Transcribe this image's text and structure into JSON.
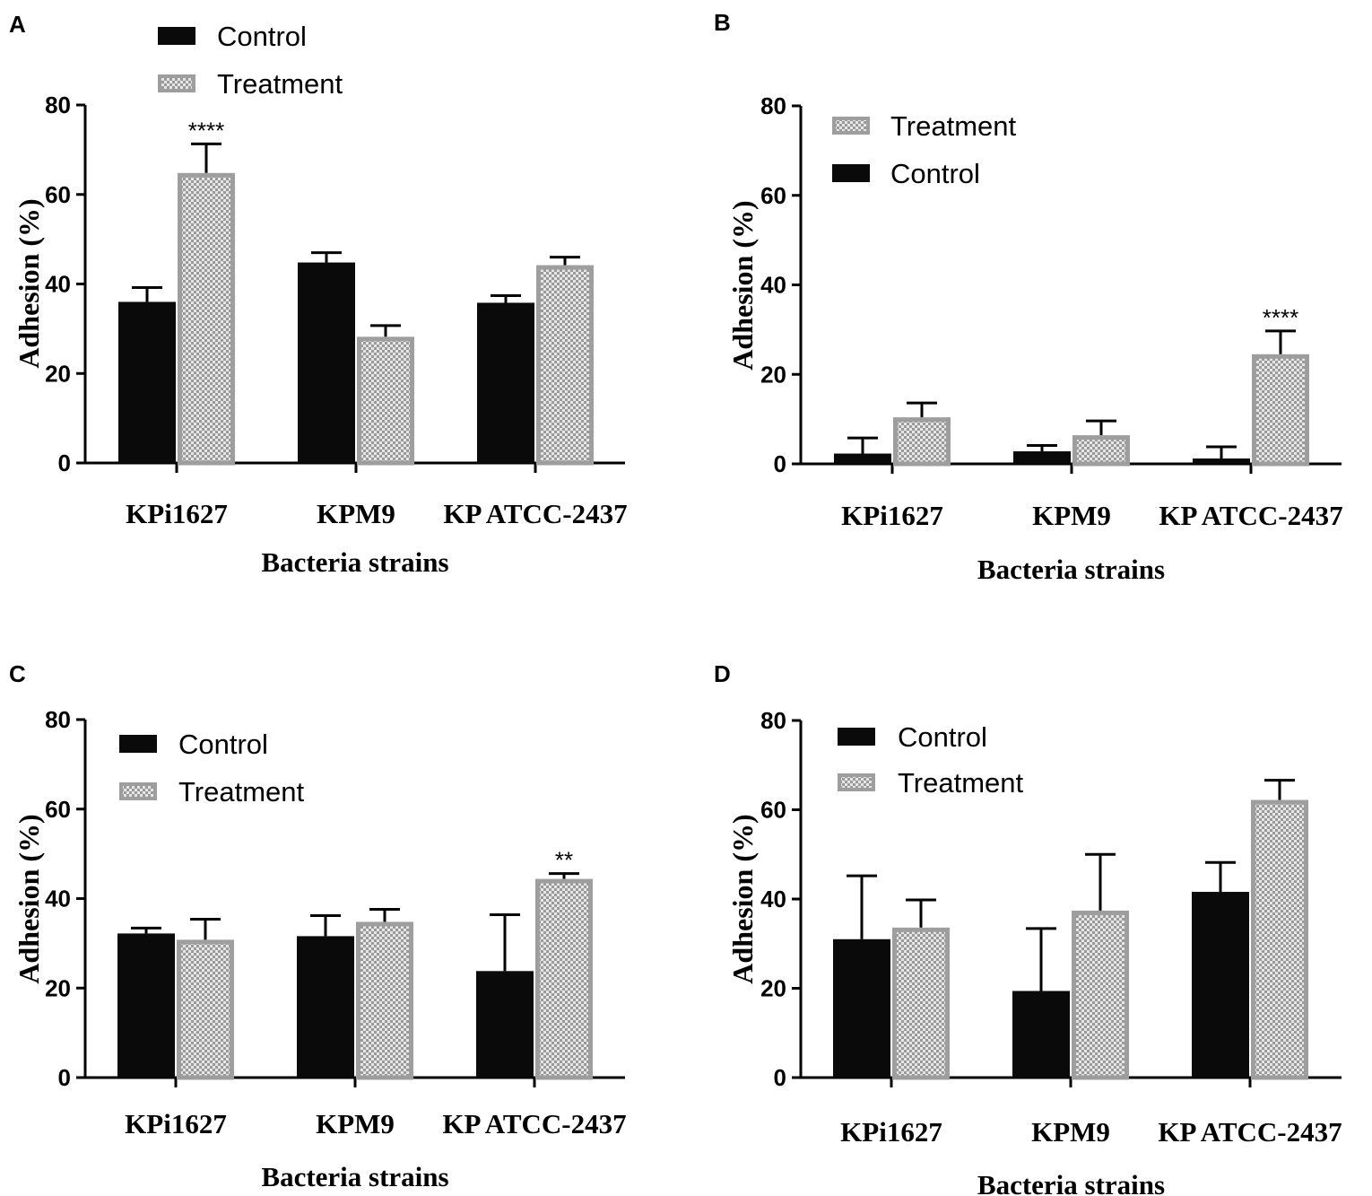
{
  "colors": {
    "control": "#0a0a0a",
    "treatment_fill": "#cfcfcf",
    "treatment_border": "#9e9e9e",
    "axis": "#000000"
  },
  "chart_data": [
    {
      "panel": "A",
      "type": "bar",
      "categories": [
        "KPi1627",
        "KPM9",
        "KP ATCC-2437"
      ],
      "series": [
        {
          "name": "Control",
          "values": [
            36,
            44.8,
            35.8
          ],
          "errors": [
            3.2,
            2.2,
            1.6
          ]
        },
        {
          "name": "Treatment",
          "values": [
            64.8,
            28.2,
            44.2
          ],
          "errors": [
            6.5,
            2.5,
            1.8
          ]
        }
      ],
      "legend_order": [
        "Control",
        "Treatment"
      ],
      "legend_position": "top-left outside",
      "annotations": [
        {
          "category": 0,
          "series": "Treatment",
          "text": "****"
        }
      ],
      "xlabel": "Bacteria strains",
      "ylabel": "Adhesion (%)",
      "ylim": [
        0,
        80
      ],
      "yticks": [
        0,
        20,
        40,
        60,
        80
      ]
    },
    {
      "panel": "B",
      "type": "bar",
      "categories": [
        "KPi1627",
        "KPM9",
        "KP ATCC-2437"
      ],
      "series": [
        {
          "name": "Control",
          "values": [
            2.3,
            2.8,
            1.2
          ],
          "errors": [
            3.5,
            1.3,
            2.6
          ]
        },
        {
          "name": "Treatment",
          "values": [
            10.4,
            6.4,
            24.5
          ],
          "errors": [
            3.2,
            3.2,
            5.2
          ]
        }
      ],
      "legend_order": [
        "Treatment",
        "Control"
      ],
      "legend_position": "top-left",
      "annotations": [
        {
          "category": 2,
          "series": "Treatment",
          "text": "****"
        }
      ],
      "xlabel": "Bacteria strains",
      "ylabel": "Adhesion (%)",
      "ylim": [
        0,
        80
      ],
      "yticks": [
        0,
        20,
        40,
        60,
        80
      ]
    },
    {
      "panel": "C",
      "type": "bar",
      "categories": [
        "KPi1627",
        "KPM9",
        "KP ATCC-2437"
      ],
      "series": [
        {
          "name": "Control",
          "values": [
            32.2,
            31.6,
            23.8
          ],
          "errors": [
            1.2,
            4.6,
            12.6
          ]
        },
        {
          "name": "Treatment",
          "values": [
            30.8,
            34.8,
            44.4
          ],
          "errors": [
            4.6,
            2.8,
            1.2
          ]
        }
      ],
      "legend_order": [
        "Control",
        "Treatment"
      ],
      "legend_position": "top-left",
      "annotations": [
        {
          "category": 2,
          "series": "Treatment",
          "text": "**"
        }
      ],
      "xlabel": "Bacteria strains",
      "ylabel": "Adhesion (%)",
      "ylim": [
        0,
        80
      ],
      "yticks": [
        0,
        20,
        40,
        60,
        80
      ]
    },
    {
      "panel": "D",
      "type": "bar",
      "categories": [
        "KPi1627",
        "KPM9",
        "KP ATCC-2437"
      ],
      "series": [
        {
          "name": "Control",
          "values": [
            31,
            19.4,
            41.6
          ],
          "errors": [
            14.2,
            14,
            6.6
          ]
        },
        {
          "name": "Treatment",
          "values": [
            33.6,
            37.4,
            62.2
          ],
          "errors": [
            6.2,
            12.6,
            4.4
          ]
        }
      ],
      "legend_order": [
        "Control",
        "Treatment"
      ],
      "legend_position": "top-left",
      "annotations": [],
      "xlabel": "Bacteria strains",
      "ylabel": "Adhesion (%)",
      "ylim": [
        0,
        80
      ],
      "yticks": [
        0,
        20,
        40,
        60,
        80
      ]
    }
  ]
}
